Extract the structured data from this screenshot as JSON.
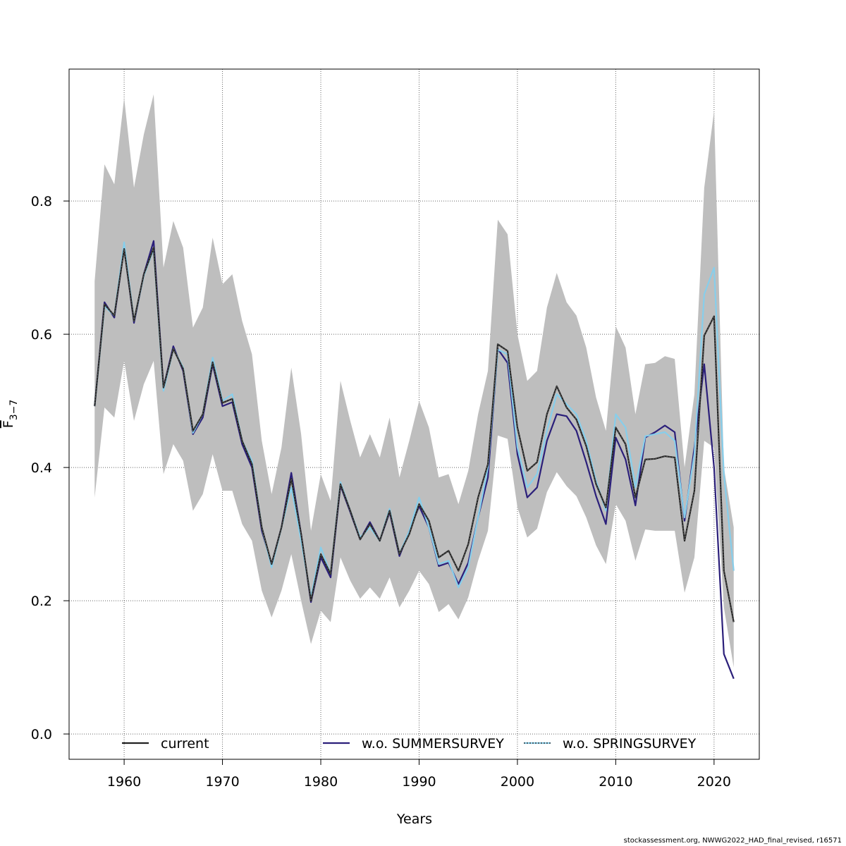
{
  "footer_text": "stockassessment.org, NWWG2022_HAD_final_revised, r16571",
  "chart_data": {
    "type": "line",
    "title": "",
    "xlabel": "Years",
    "ylabel": "F̅₃₋₇",
    "ylabel_main": "F",
    "ylabel_sub": "3−7",
    "xlim": [
      1954.4,
      2024.6
    ],
    "ylim": [
      -0.038,
      0.998
    ],
    "xticks": [
      1960,
      1970,
      1980,
      1990,
      2000,
      2010,
      2020
    ],
    "xtick_labels": [
      "1960",
      "1970",
      "1980",
      "1990",
      "2000",
      "2010",
      "2020"
    ],
    "yticks": [
      0.0,
      0.2,
      0.4,
      0.6,
      0.8
    ],
    "ytick_labels": [
      "0.0",
      "0.2",
      "0.4",
      "0.6",
      "0.8"
    ],
    "grid": true,
    "legend_position": "bottom",
    "x": [
      1957,
      1958,
      1959,
      1960,
      1961,
      1962,
      1963,
      1964,
      1965,
      1966,
      1967,
      1968,
      1969,
      1970,
      1971,
      1972,
      1973,
      1974,
      1975,
      1976,
      1977,
      1978,
      1979,
      1980,
      1981,
      1982,
      1983,
      1984,
      1985,
      1986,
      1987,
      1988,
      1989,
      1990,
      1991,
      1992,
      1993,
      1994,
      1995,
      1996,
      1997,
      1998,
      1999,
      2000,
      2001,
      2002,
      2003,
      2004,
      2005,
      2006,
      2007,
      2008,
      2009,
      2010,
      2011,
      2012,
      2013,
      2014,
      2015,
      2016,
      2017,
      2018,
      2019,
      2020,
      2021,
      2022
    ],
    "confidence_band": {
      "color": "#bebebe",
      "upper": [
        0.68,
        0.855,
        0.825,
        0.955,
        0.82,
        0.9,
        0.96,
        0.7,
        0.77,
        0.73,
        0.61,
        0.64,
        0.745,
        0.675,
        0.69,
        0.62,
        0.57,
        0.44,
        0.36,
        0.43,
        0.55,
        0.45,
        0.305,
        0.39,
        0.35,
        0.53,
        0.47,
        0.415,
        0.45,
        0.415,
        0.475,
        0.385,
        0.44,
        0.5,
        0.46,
        0.385,
        0.39,
        0.345,
        0.395,
        0.48,
        0.545,
        0.772,
        0.75,
        0.6,
        0.53,
        0.545,
        0.64,
        0.692,
        0.648,
        0.628,
        0.58,
        0.505,
        0.455,
        0.612,
        0.58,
        0.48,
        0.555,
        0.557,
        0.567,
        0.563,
        0.4,
        0.51,
        0.82,
        0.935,
        0.4,
        0.31
      ],
      "lower": [
        0.355,
        0.49,
        0.475,
        0.56,
        0.47,
        0.525,
        0.56,
        0.39,
        0.435,
        0.41,
        0.335,
        0.36,
        0.42,
        0.365,
        0.365,
        0.315,
        0.29,
        0.215,
        0.175,
        0.215,
        0.27,
        0.2,
        0.135,
        0.185,
        0.168,
        0.265,
        0.23,
        0.203,
        0.22,
        0.203,
        0.235,
        0.19,
        0.215,
        0.245,
        0.225,
        0.183,
        0.195,
        0.172,
        0.205,
        0.26,
        0.305,
        0.448,
        0.443,
        0.34,
        0.295,
        0.308,
        0.363,
        0.393,
        0.372,
        0.357,
        0.325,
        0.283,
        0.255,
        0.345,
        0.32,
        0.26,
        0.307,
        0.305,
        0.305,
        0.305,
        0.212,
        0.265,
        0.44,
        0.43,
        0.19,
        0.1
      ]
    },
    "series": [
      {
        "name": "current",
        "color": "#222222",
        "dashed_overlay": "#555555",
        "values": [
          0.492,
          0.645,
          0.628,
          0.728,
          0.62,
          0.69,
          0.73,
          0.52,
          0.578,
          0.548,
          0.455,
          0.48,
          0.558,
          0.497,
          0.503,
          0.44,
          0.405,
          0.31,
          0.255,
          0.31,
          0.383,
          0.3,
          0.2,
          0.27,
          0.24,
          0.375,
          0.335,
          0.292,
          0.315,
          0.29,
          0.335,
          0.27,
          0.3,
          0.345,
          0.32,
          0.265,
          0.275,
          0.245,
          0.285,
          0.355,
          0.405,
          0.585,
          0.575,
          0.46,
          0.395,
          0.408,
          0.48,
          0.522,
          0.49,
          0.472,
          0.432,
          0.375,
          0.34,
          0.46,
          0.435,
          0.355,
          0.412,
          0.413,
          0.417,
          0.415,
          0.29,
          0.365,
          0.598,
          0.627,
          0.245,
          0.168
        ]
      },
      {
        "name": "w.o. SUMMERSURVEY",
        "color": "#2b1f7a",
        "values": [
          0.492,
          0.648,
          0.625,
          0.73,
          0.617,
          0.69,
          0.74,
          0.52,
          0.582,
          0.545,
          0.45,
          0.475,
          0.555,
          0.492,
          0.498,
          0.435,
          0.4,
          0.305,
          0.255,
          0.31,
          0.392,
          0.3,
          0.198,
          0.265,
          0.235,
          0.373,
          0.333,
          0.292,
          0.318,
          0.29,
          0.333,
          0.267,
          0.305,
          0.342,
          0.31,
          0.252,
          0.257,
          0.225,
          0.257,
          0.325,
          0.385,
          0.578,
          0.557,
          0.42,
          0.355,
          0.37,
          0.44,
          0.48,
          0.477,
          0.455,
          0.408,
          0.357,
          0.315,
          0.445,
          0.412,
          0.343,
          0.445,
          0.453,
          0.463,
          0.453,
          0.32,
          0.43,
          0.555,
          0.4,
          0.12,
          0.083
        ]
      },
      {
        "name": "w.o. SPRINGSURVEY",
        "color": "#87ceeb",
        "values": [
          0.492,
          0.642,
          0.628,
          0.738,
          0.62,
          0.688,
          0.728,
          0.515,
          0.578,
          0.55,
          0.452,
          0.48,
          0.565,
          0.5,
          0.51,
          0.44,
          0.41,
          0.31,
          0.25,
          0.31,
          0.37,
          0.29,
          0.205,
          0.28,
          0.24,
          0.378,
          0.335,
          0.295,
          0.31,
          0.29,
          0.338,
          0.27,
          0.305,
          0.355,
          0.31,
          0.255,
          0.26,
          0.22,
          0.25,
          0.325,
          0.4,
          0.577,
          0.57,
          0.43,
          0.37,
          0.39,
          0.455,
          0.51,
          0.495,
          0.48,
          0.44,
          0.38,
          0.335,
          0.48,
          0.46,
          0.37,
          0.447,
          0.45,
          0.453,
          0.44,
          0.325,
          0.42,
          0.66,
          0.7,
          0.39,
          0.245
        ]
      }
    ]
  }
}
